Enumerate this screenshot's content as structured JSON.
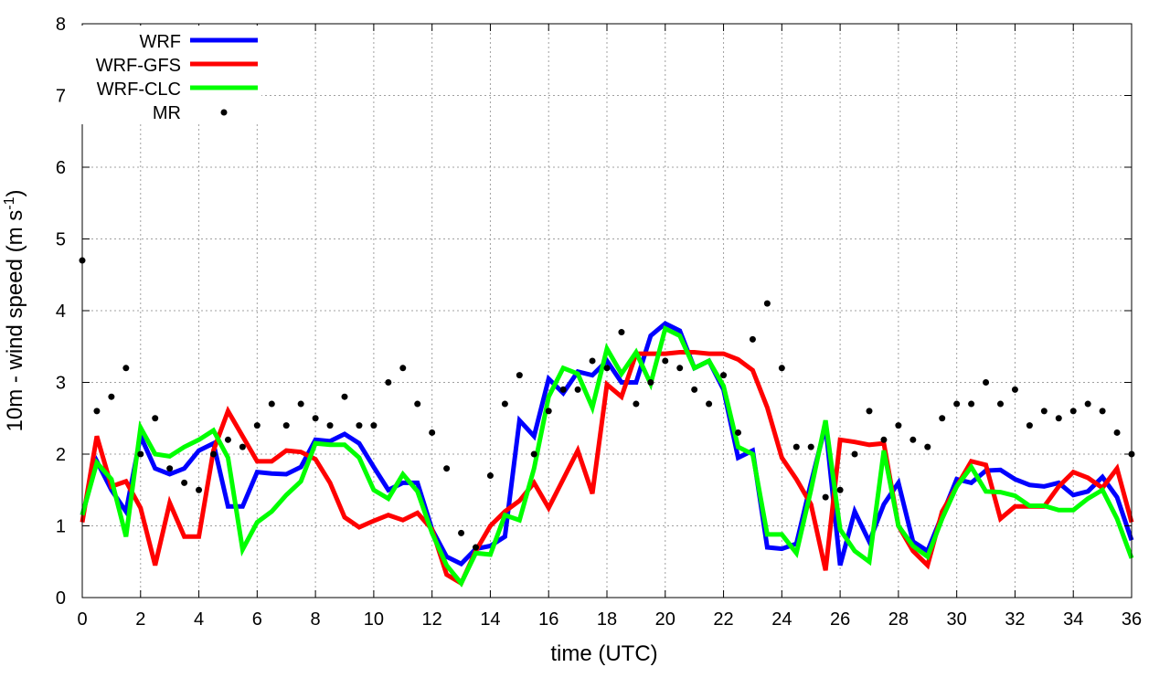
{
  "chart_data": {
    "type": "line",
    "title": "",
    "xlabel": "time (UTC)",
    "ylabel": "10m - wind speed  (m s",
    "ylabel_sup": "-1",
    "ylabel_tail": ")",
    "xlim": [
      0,
      36
    ],
    "ylim": [
      0,
      8
    ],
    "xticks": [
      "0",
      "2",
      "4",
      "6",
      "8",
      "10",
      "12",
      "14",
      "16",
      "18",
      "20",
      "22",
      "24",
      "26",
      "28",
      "30",
      "32",
      "34",
      "36"
    ],
    "yticks": [
      "0",
      "1",
      "2",
      "3",
      "4",
      "5",
      "6",
      "7",
      "8"
    ],
    "grid": true,
    "legend_position": "top-left",
    "x_step": 0.5,
    "series": [
      {
        "name": "WRF",
        "style": "line",
        "color": "#0000ff",
        "values": [
          1.15,
          1.9,
          1.5,
          1.2,
          2.25,
          1.8,
          1.72,
          1.8,
          2.05,
          2.15,
          1.27,
          1.27,
          1.75,
          1.73,
          1.72,
          1.82,
          2.2,
          2.18,
          2.28,
          2.15,
          1.82,
          1.5,
          1.6,
          1.6,
          0.95,
          0.57,
          0.47,
          0.68,
          0.72,
          0.85,
          2.47,
          2.25,
          3.05,
          2.85,
          3.15,
          3.1,
          3.3,
          3.0,
          3.0,
          3.65,
          3.82,
          3.72,
          3.2,
          3.3,
          2.9,
          1.95,
          2.05,
          0.7,
          0.68,
          0.75,
          1.6,
          2.4,
          0.45,
          1.2,
          0.78,
          1.3,
          1.6,
          0.78,
          0.65,
          1.15,
          1.65,
          1.6,
          1.77,
          1.78,
          1.65,
          1.57,
          1.55,
          1.6,
          1.43,
          1.48,
          1.68,
          1.4,
          0.8
        ]
      },
      {
        "name": "WRF-GFS",
        "style": "line",
        "color": "#ff0000",
        "values": [
          1.05,
          2.25,
          1.55,
          1.62,
          1.25,
          0.45,
          1.32,
          0.85,
          0.85,
          2.05,
          2.6,
          2.25,
          1.9,
          1.9,
          2.05,
          2.03,
          1.93,
          1.6,
          1.12,
          0.98,
          1.07,
          1.15,
          1.08,
          1.18,
          0.95,
          0.32,
          0.2,
          0.65,
          1.0,
          1.2,
          1.35,
          1.6,
          1.25,
          1.65,
          2.05,
          1.45,
          2.97,
          2.8,
          3.4,
          3.4,
          3.4,
          3.42,
          3.42,
          3.4,
          3.4,
          3.32,
          3.17,
          2.65,
          1.95,
          1.65,
          1.3,
          0.38,
          2.2,
          2.17,
          2.13,
          2.15,
          1.0,
          0.65,
          0.45,
          1.2,
          1.55,
          1.9,
          1.85,
          1.1,
          1.27,
          1.27,
          1.27,
          1.55,
          1.75,
          1.67,
          1.53,
          1.8,
          1.05
        ]
      },
      {
        "name": "WRF-CLC",
        "style": "line",
        "color": "#00ff00",
        "values": [
          1.15,
          1.88,
          1.65,
          0.85,
          2.37,
          2.0,
          1.97,
          2.1,
          2.2,
          2.33,
          1.95,
          0.67,
          1.05,
          1.2,
          1.43,
          1.62,
          2.15,
          2.13,
          2.13,
          1.95,
          1.5,
          1.38,
          1.72,
          1.48,
          0.9,
          0.45,
          0.2,
          0.62,
          0.6,
          1.15,
          1.08,
          1.8,
          2.8,
          3.2,
          3.12,
          2.65,
          3.47,
          3.12,
          3.42,
          2.98,
          3.75,
          3.65,
          3.2,
          3.3,
          2.95,
          2.1,
          2.0,
          0.88,
          0.88,
          0.62,
          1.5,
          2.47,
          0.95,
          0.65,
          0.5,
          2.05,
          1.0,
          0.72,
          0.57,
          1.1,
          1.55,
          1.82,
          1.48,
          1.47,
          1.42,
          1.28,
          1.28,
          1.22,
          1.22,
          1.38,
          1.5,
          1.1,
          0.55
        ]
      },
      {
        "name": "MR",
        "style": "points",
        "color": "#000000",
        "values": [
          4.7,
          2.6,
          2.8,
          3.2,
          2.0,
          2.5,
          1.8,
          1.6,
          1.5,
          2.0,
          2.2,
          2.1,
          2.4,
          2.7,
          2.4,
          2.7,
          2.5,
          2.4,
          2.8,
          2.4,
          2.4,
          3.0,
          3.2,
          2.7,
          2.3,
          1.8,
          0.9,
          0.7,
          1.7,
          2.7,
          3.1,
          2.0,
          2.6,
          2.9,
          2.9,
          3.3,
          3.2,
          3.7,
          2.7,
          3.0,
          3.3,
          3.2,
          2.9,
          2.7,
          3.1,
          2.3,
          3.6,
          4.1,
          3.2,
          2.1,
          2.1,
          1.4,
          1.5,
          2.0,
          2.6,
          2.2,
          2.4,
          2.2,
          2.1,
          2.5,
          2.7,
          2.7,
          3.0,
          2.7,
          2.9,
          2.4,
          2.6,
          2.5,
          2.6,
          2.7,
          2.6,
          2.3,
          2.0
        ]
      }
    ]
  }
}
